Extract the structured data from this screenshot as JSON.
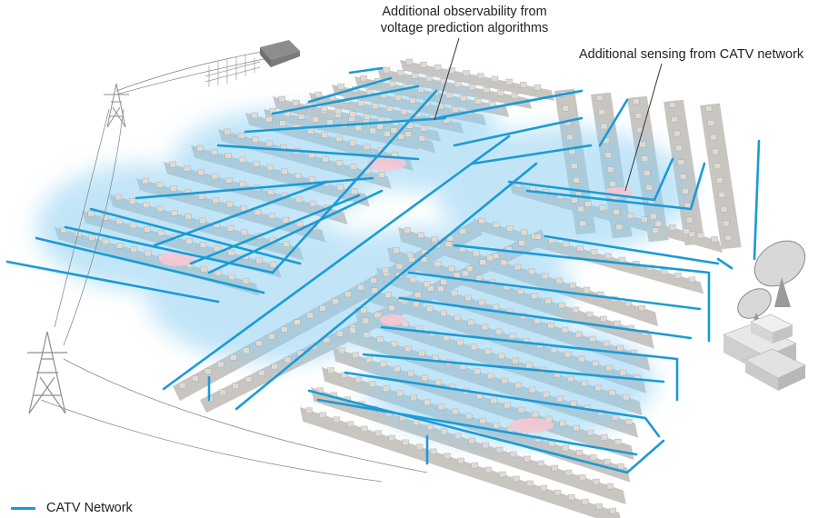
{
  "callouts": {
    "observability": "Additional observability from voltage prediction algorithms",
    "sensing": "Additional sensing from CATV network"
  },
  "legend": {
    "items": [
      {
        "label": "CATV Network",
        "color": "#1a9bd7"
      }
    ]
  },
  "colors": {
    "catv_line": "#1a9bd7",
    "coverage_glow": "#8fd0f2",
    "hotspot": "#f6c6d0",
    "block": "#c9c5c1",
    "house": "#dedbd7",
    "tower": "#9a9a9a"
  },
  "icons": [
    "transmission-tower-icon",
    "substation-icon",
    "satellite-dish-icon",
    "headend-building-icon"
  ]
}
